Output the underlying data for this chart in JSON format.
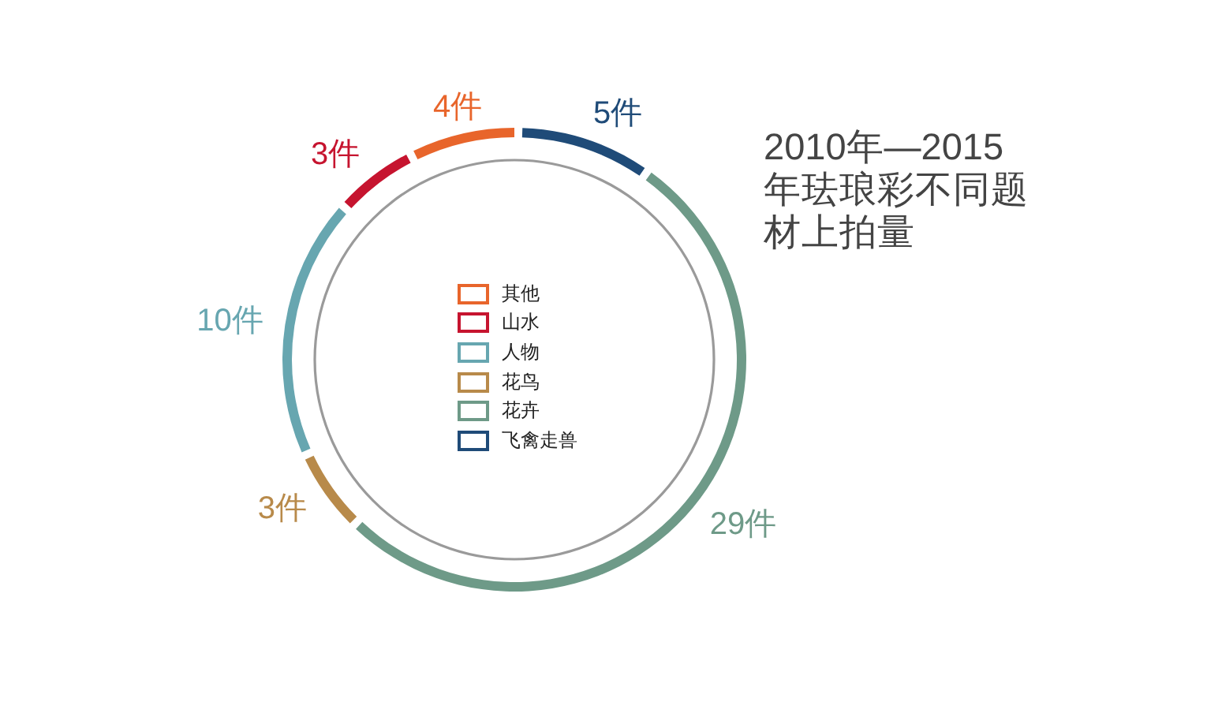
{
  "chart_data": {
    "type": "donut",
    "title": "2010年—2015年珐琅彩不同题材上拍量",
    "categories": [
      "其他",
      "山水",
      "人物",
      "花鸟",
      "花卉",
      "飞禽走兽"
    ],
    "values": [
      4,
      3,
      10,
      3,
      29,
      5
    ],
    "colors": [
      "#e8652b",
      "#c6142f",
      "#67a6b0",
      "#b88a4a",
      "#6e9a88",
      "#1f4b78"
    ],
    "value_labels": [
      "4件",
      "3件",
      "10件",
      "3件",
      "29件",
      "5件"
    ],
    "legend": "center"
  }
}
